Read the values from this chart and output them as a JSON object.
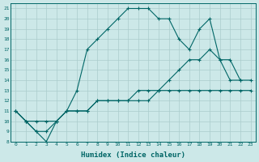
{
  "xlabel": "Humidex (Indice chaleur)",
  "bg_color": "#cce8e8",
  "grid_color": "#aacccc",
  "line_color": "#006666",
  "xlim": [
    -0.5,
    23.5
  ],
  "ylim": [
    8,
    21.5
  ],
  "xticks": [
    0,
    1,
    2,
    3,
    4,
    5,
    6,
    7,
    8,
    9,
    10,
    11,
    12,
    13,
    14,
    15,
    16,
    17,
    18,
    19,
    20,
    21,
    22,
    23
  ],
  "yticks": [
    8,
    9,
    10,
    11,
    12,
    13,
    14,
    15,
    16,
    17,
    18,
    19,
    20,
    21
  ],
  "series1_x": [
    0,
    1,
    2,
    3,
    4,
    5,
    6,
    7,
    8,
    9,
    10,
    11,
    12,
    13,
    14,
    15,
    16,
    17,
    18,
    19,
    20,
    21,
    22
  ],
  "series1_y": [
    11,
    10,
    9,
    8,
    10,
    11,
    13,
    17,
    18,
    19,
    20,
    21,
    21,
    21,
    20,
    20,
    18,
    17,
    19,
    20,
    16,
    14,
    14
  ],
  "series2_x": [
    0,
    1,
    2,
    3,
    4,
    5,
    6,
    7,
    8,
    9,
    10,
    11,
    12,
    13,
    14,
    15,
    16,
    17,
    18,
    19,
    20,
    21,
    22,
    23
  ],
  "series2_y": [
    11,
    10,
    9,
    9,
    10,
    11,
    11,
    11,
    12,
    12,
    12,
    12,
    12,
    12,
    13,
    13,
    13,
    13,
    13,
    13,
    13,
    13,
    13,
    13
  ],
  "series3_x": [
    0,
    1,
    2,
    3,
    4,
    5,
    6,
    7,
    8,
    9,
    10,
    11,
    12,
    13,
    14,
    15,
    16,
    17,
    18,
    19,
    20,
    21,
    22,
    23
  ],
  "series3_y": [
    11,
    10,
    10,
    10,
    10,
    11,
    11,
    11,
    12,
    12,
    12,
    12,
    13,
    13,
    13,
    14,
    15,
    16,
    16,
    17,
    16,
    16,
    14,
    14
  ]
}
